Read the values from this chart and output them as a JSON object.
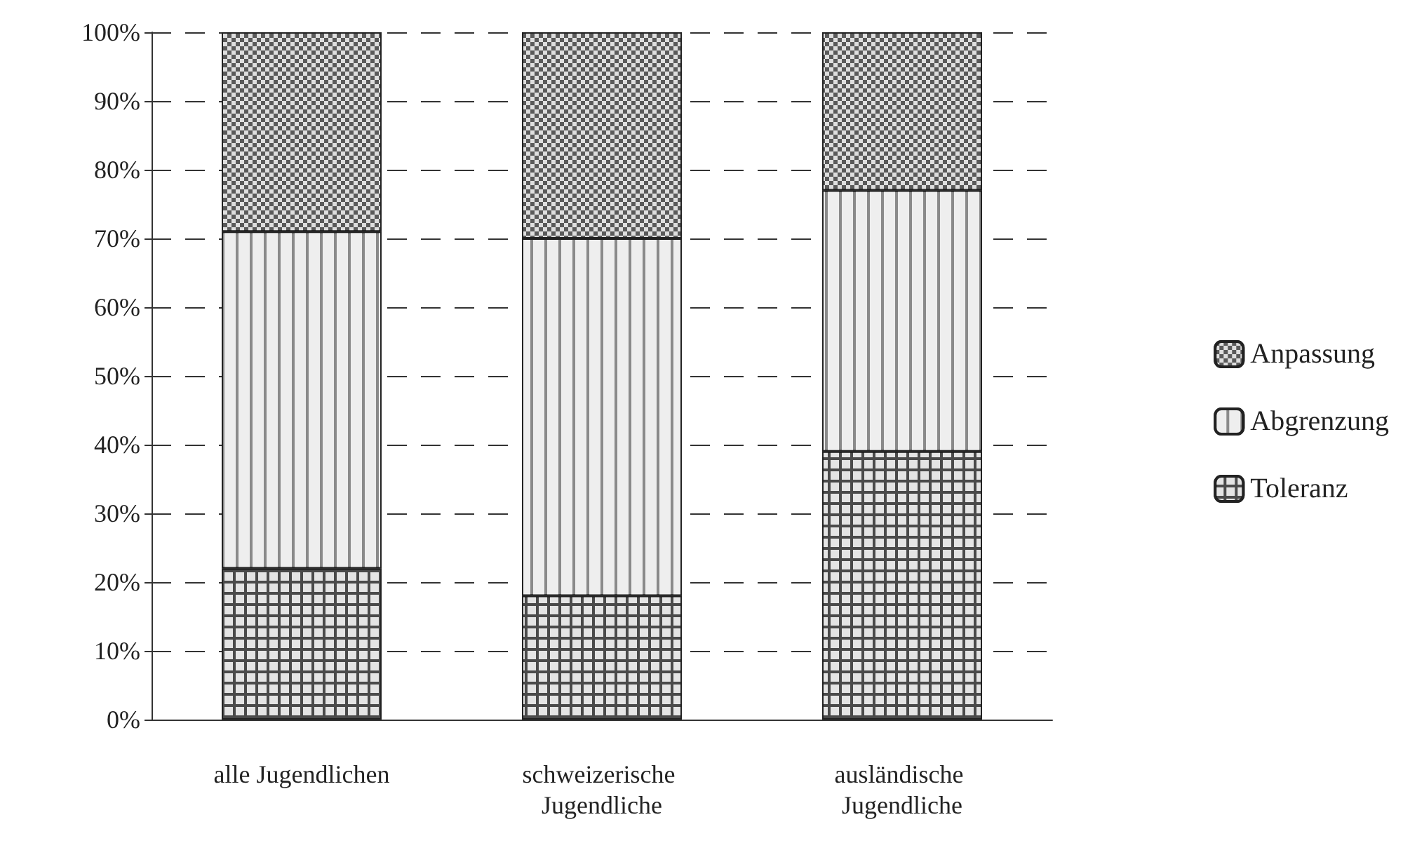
{
  "chart_data": {
    "type": "bar",
    "stacked": true,
    "categories": [
      "alle Jugendlichen",
      "schweizerische Jugendliche",
      "ausländische Jugendliche"
    ],
    "series": [
      {
        "name": "Toleranz",
        "color": "#4a4a4a",
        "values": [
          22,
          18,
          39
        ]
      },
      {
        "name": "Abgrenzung",
        "color": "#8a8a8a",
        "values": [
          49,
          52,
          38
        ]
      },
      {
        "name": "Anpassung",
        "color": "#5a5a5a",
        "values": [
          29,
          30,
          23
        ]
      }
    ],
    "ylim": [
      0,
      100
    ],
    "yticks": [
      {
        "value": 0,
        "label": "0%"
      },
      {
        "value": 10,
        "label": "10%"
      },
      {
        "value": 20,
        "label": "20%"
      },
      {
        "value": 30,
        "label": "30%"
      },
      {
        "value": 40,
        "label": "40%"
      },
      {
        "value": 50,
        "label": "50%"
      },
      {
        "value": 60,
        "label": "60%"
      },
      {
        "value": 70,
        "label": "70%"
      },
      {
        "value": 80,
        "label": "80%"
      },
      {
        "value": 90,
        "label": "90%"
      },
      {
        "value": 100,
        "label": "100%"
      }
    ],
    "grid": "y",
    "legend": "right"
  }
}
